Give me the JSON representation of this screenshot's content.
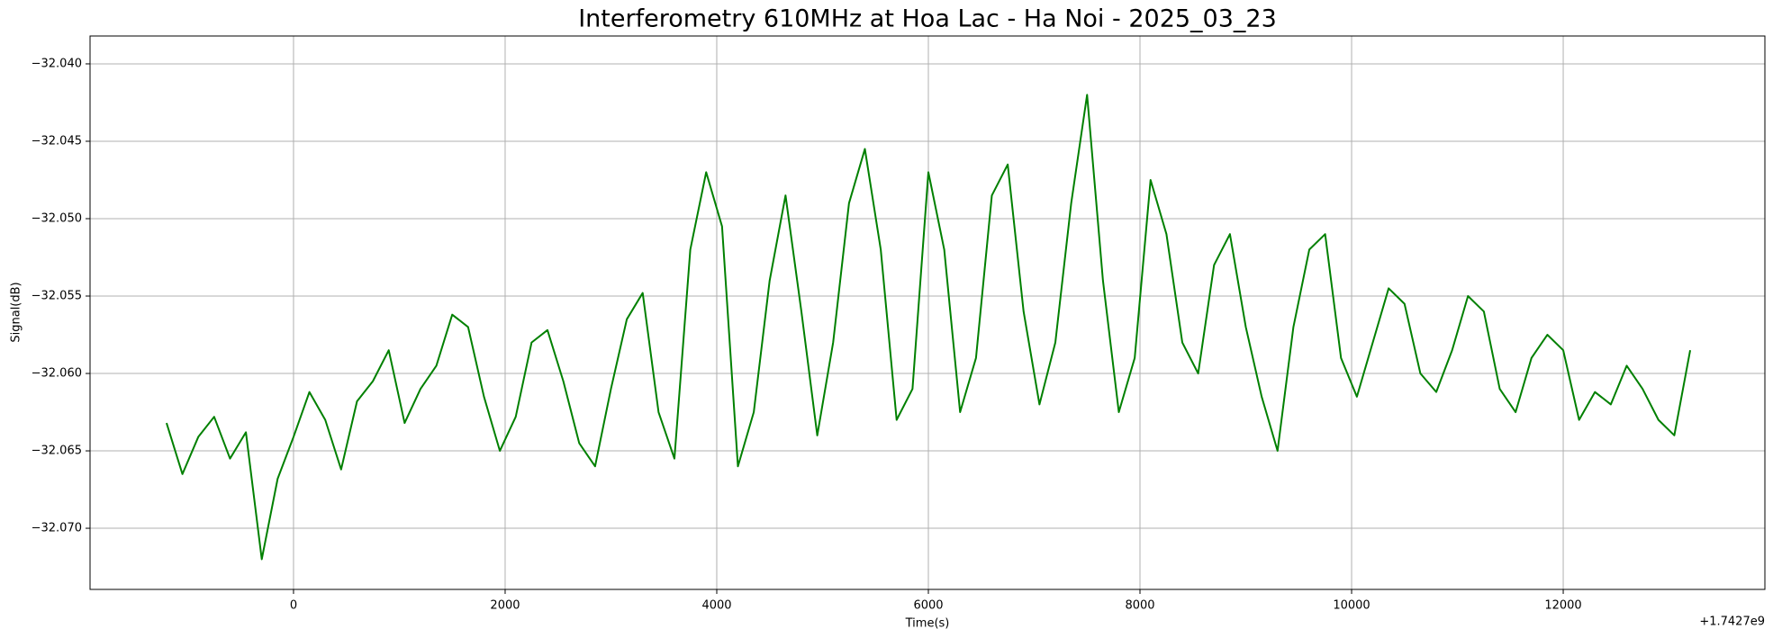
{
  "chart_data": {
    "type": "line",
    "title": "Interferometry 610MHz at Hoa Lac - Ha Noi - 2025_03_23",
    "x_label": "Time(s)",
    "y_label": "Signal(dB)",
    "x_offset_label": "+1.7427e9",
    "grid": true,
    "xlim": [
      -1923,
      13906
    ],
    "ylim": [
      -32.07395,
      -32.0382
    ],
    "xticks": [
      0,
      2000,
      4000,
      6000,
      8000,
      10000,
      12000
    ],
    "yticks": [
      {
        "value": -32.04,
        "label": "−32.040"
      },
      {
        "value": -32.045,
        "label": "−32.045"
      },
      {
        "value": -32.05,
        "label": "−32.050"
      },
      {
        "value": -32.055,
        "label": "−32.055"
      },
      {
        "value": -32.06,
        "label": "−32.060"
      },
      {
        "value": -32.065,
        "label": "−32.065"
      },
      {
        "value": -32.07,
        "label": "−32.070"
      }
    ],
    "x": [
      -1200,
      -1050,
      -900,
      -750,
      -600,
      -450,
      -300,
      -150,
      0,
      150,
      300,
      450,
      600,
      750,
      900,
      1050,
      1200,
      1350,
      1500,
      1650,
      1800,
      1950,
      2100,
      2250,
      2400,
      2550,
      2700,
      2850,
      3000,
      3150,
      3300,
      3450,
      3600,
      3750,
      3900,
      4050,
      4200,
      4350,
      4500,
      4650,
      4800,
      4950,
      5100,
      5250,
      5400,
      5550,
      5700,
      5850,
      6000,
      6150,
      6300,
      6450,
      6600,
      6750,
      6900,
      7050,
      7200,
      7350,
      7500,
      7650,
      7800,
      7950,
      8100,
      8250,
      8400,
      8550,
      8700,
      8850,
      9000,
      9150,
      9300,
      9450,
      9600,
      9750,
      9900,
      10050,
      10200,
      10350,
      10500,
      10650,
      10800,
      10950,
      11100,
      11250,
      11400,
      11550,
      11700,
      11850,
      12000,
      12150,
      12300,
      12450,
      12600,
      12750,
      12900,
      13050,
      13200
    ],
    "series": [
      {
        "color": "#008000",
        "values": [
          -32.0632,
          -32.0665,
          -32.0641,
          -32.0628,
          -32.0655,
          -32.0638,
          -32.072,
          -32.0668,
          -32.0641,
          -32.0612,
          -32.063,
          -32.0662,
          -32.0618,
          -32.0605,
          -32.0585,
          -32.0632,
          -32.061,
          -32.0595,
          -32.0562,
          -32.057,
          -32.0615,
          -32.065,
          -32.0628,
          -32.058,
          -32.0572,
          -32.0605,
          -32.0645,
          -32.066,
          -32.061,
          -32.0565,
          -32.0548,
          -32.0625,
          -32.0655,
          -32.052,
          -32.047,
          -32.0505,
          -32.066,
          -32.0625,
          -32.054,
          -32.0485,
          -32.056,
          -32.064,
          -32.058,
          -32.049,
          -32.0455,
          -32.052,
          -32.063,
          -32.061,
          -32.047,
          -32.052,
          -32.0625,
          -32.059,
          -32.0485,
          -32.0465,
          -32.056,
          -32.062,
          -32.058,
          -32.049,
          -32.042,
          -32.054,
          -32.0625,
          -32.059,
          -32.0475,
          -32.051,
          -32.058,
          -32.06,
          -32.053,
          -32.051,
          -32.057,
          -32.0615,
          -32.065,
          -32.057,
          -32.052,
          -32.051,
          -32.059,
          -32.0615,
          -32.058,
          -32.0545,
          -32.0555,
          -32.06,
          -32.0612,
          -32.0585,
          -32.055,
          -32.056,
          -32.061,
          -32.0625,
          -32.059,
          -32.0575,
          -32.0585,
          -32.063,
          -32.0612,
          -32.062,
          -32.0595,
          -32.061,
          -32.063,
          -32.064,
          -32.0585
        ]
      }
    ]
  }
}
